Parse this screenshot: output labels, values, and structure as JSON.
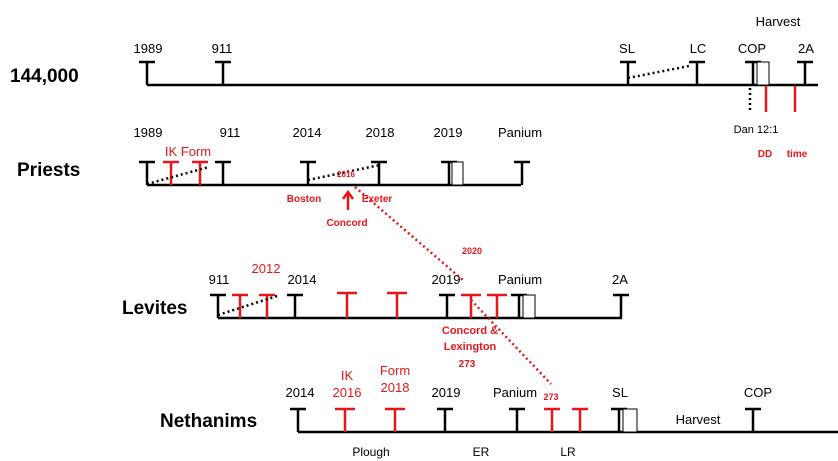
{
  "colors": {
    "ink": "#000000",
    "accent": "#e8161b"
  },
  "rows": {
    "r144": {
      "label": "144,000",
      "marks": {
        "m1989": "1989",
        "m911": "911",
        "sl": "SL",
        "lc": "LC",
        "cop": "COP",
        "harvest": "Harvest",
        "a2": "2A"
      },
      "below": {
        "dan": "Dan 12:1",
        "dd": "DD",
        "time": "time"
      }
    },
    "priests": {
      "label": "Priests",
      "marks": {
        "m1989": "1989",
        "m911": "911",
        "m2014": "2014",
        "m2018": "2018",
        "m2019": "2019",
        "panium": "Panium",
        "ikform": "IK Form",
        "m2016": "2016"
      },
      "below": {
        "boston": "Boston",
        "exeter": "Exeter",
        "concord": "Concord"
      }
    },
    "levites": {
      "label": "Levites",
      "marks": {
        "m911": "911",
        "m2012": "2012",
        "m2014": "2014",
        "m2019": "2019",
        "panium": "Panium",
        "a2": "2A",
        "m2020": "2020"
      },
      "below": {
        "cl1": "Concord &",
        "cl2": "Lexington",
        "n273": "273"
      }
    },
    "nethanims": {
      "label": "Nethanims",
      "marks": {
        "m2014": "2014",
        "ik": "IK",
        "m2016": "2016",
        "form": "Form",
        "m2018": "2018",
        "m2019": "2019",
        "panium": "Panium",
        "n273": "273",
        "sl": "SL",
        "harvest": "Harvest",
        "cop": "COP"
      },
      "below": {
        "plough": "Plough",
        "er": "ER",
        "lr": "LR"
      }
    }
  }
}
